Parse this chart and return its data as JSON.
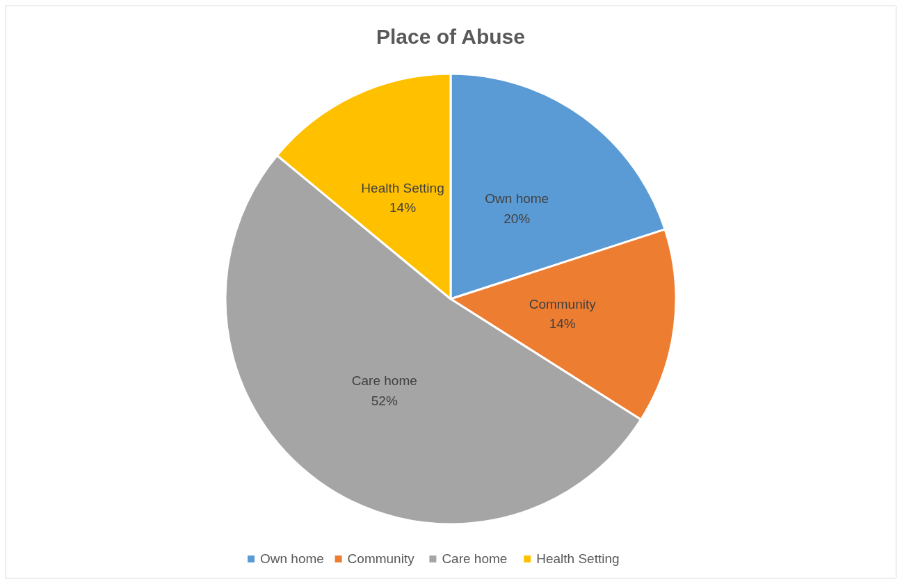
{
  "chart_data": {
    "type": "pie",
    "title": "Place of Abuse",
    "categories": [
      "Own home",
      "Community",
      "Care home",
      "Health Setting"
    ],
    "values": [
      20,
      14,
      52,
      14
    ],
    "colors": [
      "#5b9bd5",
      "#ed7d31",
      "#a5a5a5",
      "#ffc000"
    ],
    "value_labels": [
      "20%",
      "14%",
      "52%",
      "14%"
    ],
    "legend": "bottom"
  }
}
